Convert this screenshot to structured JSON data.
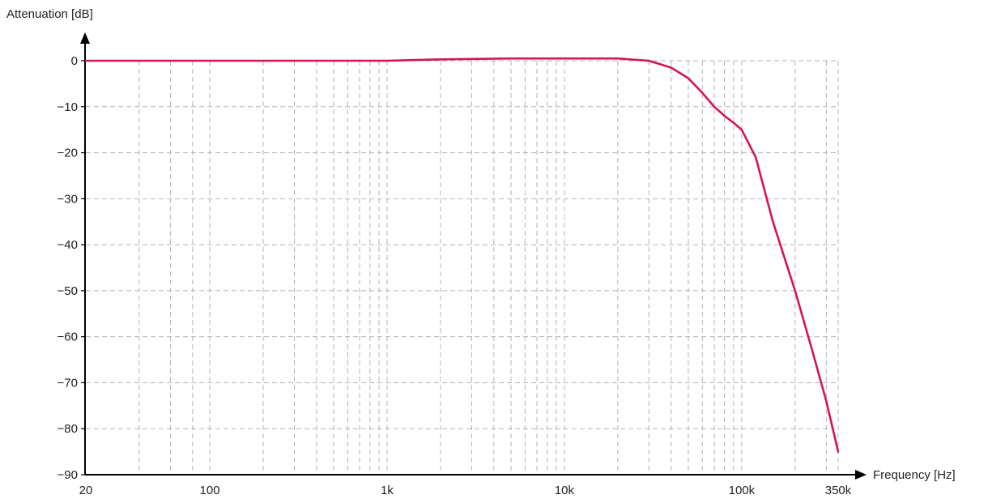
{
  "chart_data": {
    "type": "line",
    "ylabel": "Attenuation [dB]",
    "xlabel": "Frequency [Hz]",
    "x_scale": "log",
    "xlim": [
      20,
      350000
    ],
    "ylim": [
      -90,
      0
    ],
    "grid": true,
    "x_ticks": [
      {
        "value": 20,
        "label": "20"
      },
      {
        "value": 100,
        "label": "100"
      },
      {
        "value": 1000,
        "label": "1k"
      },
      {
        "value": 10000,
        "label": "10k"
      },
      {
        "value": 100000,
        "label": "100k"
      },
      {
        "value": 350000,
        "label": "350k"
      }
    ],
    "y_ticks": [
      {
        "value": 0,
        "label": "0"
      },
      {
        "value": -10,
        "label": "−10"
      },
      {
        "value": -20,
        "label": "−20"
      },
      {
        "value": -30,
        "label": "−30"
      },
      {
        "value": -40,
        "label": "−40"
      },
      {
        "value": -50,
        "label": "−50"
      },
      {
        "value": -60,
        "label": "−60"
      },
      {
        "value": -70,
        "label": "−70"
      },
      {
        "value": -80,
        "label": "−80"
      },
      {
        "value": -90,
        "label": "−90"
      }
    ],
    "x_gridlines": [
      40,
      60,
      80,
      100,
      200,
      300,
      400,
      500,
      600,
      700,
      800,
      900,
      1000,
      2000,
      3000,
      4000,
      5000,
      6000,
      7000,
      8000,
      9000,
      10000,
      20000,
      30000,
      40000,
      50000,
      60000,
      70000,
      80000,
      90000,
      100000,
      200000,
      300000,
      350000
    ],
    "series": [
      {
        "color": "#d2145a",
        "x": [
          20,
          100,
          1000,
          2000,
          5000,
          10000,
          20000,
          30000,
          40000,
          50000,
          60000,
          70000,
          80000,
          90000,
          100000,
          120000,
          150000,
          200000,
          250000,
          300000,
          350000
        ],
        "y": [
          0,
          0,
          0,
          0.3,
          0.5,
          0.5,
          0.5,
          0,
          -1.5,
          -3.8,
          -7,
          -10,
          -12,
          -13.5,
          -15,
          -21,
          -35,
          -50,
          -63,
          -74,
          -85
        ]
      }
    ]
  }
}
